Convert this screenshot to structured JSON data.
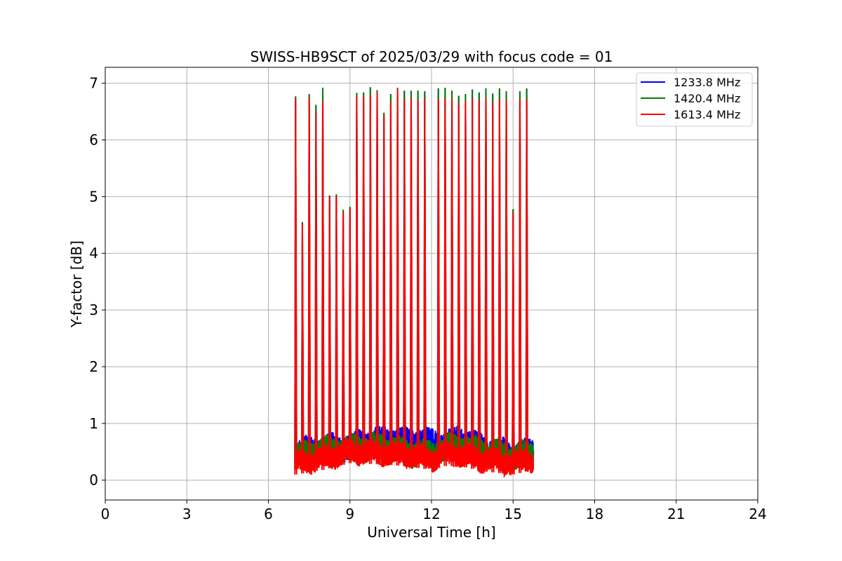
{
  "chart_data": {
    "type": "line",
    "title": "SWISS-HB9SCT of 2025/03/29 with focus code = 01",
    "xlabel": "Universal Time [h]",
    "ylabel": "Y-factor [dB]",
    "xlim": [
      0,
      24
    ],
    "ylim": [
      -0.35,
      7.28
    ],
    "xticks": [
      0,
      3,
      6,
      9,
      12,
      15,
      18,
      21,
      24
    ],
    "yticks": [
      0,
      1,
      2,
      3,
      4,
      5,
      6,
      7
    ],
    "grid": true,
    "legend_position": "top-right",
    "observation_window": [
      7.0,
      15.75
    ],
    "series": [
      {
        "name": "1233.8 MHz",
        "color": "#0000ff",
        "baseline": [
          [
            7.0,
            0.5
          ],
          [
            8.0,
            0.55
          ],
          [
            9.0,
            0.6
          ],
          [
            10.0,
            0.72
          ],
          [
            11.0,
            0.7
          ],
          [
            12.0,
            0.68
          ],
          [
            12.5,
            0.62
          ],
          [
            13.0,
            0.74
          ],
          [
            14.0,
            0.55
          ],
          [
            15.0,
            0.45
          ],
          [
            15.75,
            0.48
          ]
        ],
        "noise": 0.35,
        "peaks": [
          [
            7.0,
            6.75
          ],
          [
            7.25,
            4.55
          ],
          [
            7.5,
            6.8
          ],
          [
            7.75,
            6.6
          ],
          [
            8.0,
            6.9
          ],
          [
            8.25,
            5.02
          ],
          [
            8.5,
            5.03
          ],
          [
            8.75,
            4.77
          ],
          [
            9.0,
            4.81
          ],
          [
            9.25,
            6.82
          ],
          [
            9.5,
            6.83
          ],
          [
            9.75,
            6.92
          ],
          [
            10.0,
            6.87
          ],
          [
            10.25,
            6.47
          ],
          [
            10.5,
            6.8
          ],
          [
            10.75,
            6.91
          ],
          [
            11.0,
            6.86
          ],
          [
            11.25,
            6.86
          ],
          [
            11.5,
            6.86
          ],
          [
            11.75,
            6.85
          ],
          [
            12.25,
            6.9
          ],
          [
            12.5,
            6.91
          ],
          [
            12.75,
            6.86
          ],
          [
            13.0,
            6.77
          ],
          [
            13.25,
            6.8
          ],
          [
            13.5,
            6.88
          ],
          [
            13.75,
            6.83
          ],
          [
            14.0,
            6.9
          ],
          [
            14.25,
            6.81
          ],
          [
            14.5,
            6.9
          ],
          [
            14.75,
            6.85
          ],
          [
            15.0,
            4.77
          ],
          [
            15.25,
            6.85
          ],
          [
            15.5,
            6.9
          ]
        ]
      },
      {
        "name": "1420.4 MHz",
        "color": "#008000",
        "baseline": [
          [
            7.0,
            0.4
          ],
          [
            8.0,
            0.52
          ],
          [
            9.0,
            0.55
          ],
          [
            10.0,
            0.6
          ],
          [
            11.0,
            0.5
          ],
          [
            12.0,
            0.45
          ],
          [
            12.5,
            0.55
          ],
          [
            13.0,
            0.6
          ],
          [
            14.0,
            0.5
          ],
          [
            15.0,
            0.4
          ],
          [
            15.75,
            0.5
          ]
        ],
        "noise": 0.35,
        "peaks": [
          [
            7.0,
            6.77
          ],
          [
            7.25,
            4.55
          ],
          [
            7.5,
            6.81
          ],
          [
            7.75,
            6.62
          ],
          [
            8.0,
            6.92
          ],
          [
            8.25,
            5.02
          ],
          [
            8.5,
            5.04
          ],
          [
            8.75,
            4.77
          ],
          [
            9.0,
            4.82
          ],
          [
            9.25,
            6.83
          ],
          [
            9.5,
            6.84
          ],
          [
            9.75,
            6.93
          ],
          [
            10.0,
            6.88
          ],
          [
            10.25,
            6.48
          ],
          [
            10.5,
            6.81
          ],
          [
            10.75,
            6.92
          ],
          [
            11.0,
            6.87
          ],
          [
            11.25,
            6.87
          ],
          [
            11.5,
            6.87
          ],
          [
            11.75,
            6.86
          ],
          [
            12.25,
            6.91
          ],
          [
            12.5,
            6.92
          ],
          [
            12.75,
            6.87
          ],
          [
            13.0,
            6.78
          ],
          [
            13.25,
            6.81
          ],
          [
            13.5,
            6.89
          ],
          [
            13.75,
            6.84
          ],
          [
            14.0,
            6.91
          ],
          [
            14.25,
            6.82
          ],
          [
            14.5,
            6.91
          ],
          [
            14.75,
            6.86
          ],
          [
            15.0,
            4.78
          ],
          [
            15.25,
            6.86
          ],
          [
            15.5,
            6.91
          ]
        ]
      },
      {
        "name": "1613.4 MHz",
        "color": "#ff0000",
        "baseline": [
          [
            7.0,
            0.3
          ],
          [
            8.0,
            0.38
          ],
          [
            9.0,
            0.5
          ],
          [
            10.0,
            0.48
          ],
          [
            11.0,
            0.45
          ],
          [
            12.0,
            0.38
          ],
          [
            12.5,
            0.45
          ],
          [
            13.0,
            0.45
          ],
          [
            14.0,
            0.35
          ],
          [
            15.0,
            0.3
          ],
          [
            15.75,
            0.38
          ]
        ],
        "noise": 0.3,
        "peaks": [
          [
            7.0,
            6.73
          ],
          [
            7.25,
            4.53
          ],
          [
            7.5,
            6.73
          ],
          [
            7.75,
            6.48
          ],
          [
            8.0,
            6.68
          ],
          [
            8.25,
            5.0
          ],
          [
            8.5,
            5.01
          ],
          [
            8.75,
            4.74
          ],
          [
            9.0,
            4.79
          ],
          [
            9.25,
            6.77
          ],
          [
            9.5,
            6.77
          ],
          [
            9.75,
            6.79
          ],
          [
            10.0,
            6.84
          ],
          [
            10.25,
            6.42
          ],
          [
            10.5,
            6.67
          ],
          [
            10.75,
            6.9
          ],
          [
            11.0,
            6.72
          ],
          [
            11.25,
            6.74
          ],
          [
            11.5,
            6.71
          ],
          [
            11.75,
            6.72
          ],
          [
            12.25,
            6.72
          ],
          [
            12.5,
            6.73
          ],
          [
            12.75,
            6.73
          ],
          [
            13.0,
            6.65
          ],
          [
            13.25,
            6.68
          ],
          [
            13.5,
            6.74
          ],
          [
            13.75,
            6.7
          ],
          [
            14.0,
            6.73
          ],
          [
            14.25,
            6.66
          ],
          [
            14.5,
            6.72
          ],
          [
            14.75,
            6.71
          ],
          [
            15.0,
            4.73
          ],
          [
            15.25,
            6.72
          ],
          [
            15.5,
            6.72
          ]
        ]
      }
    ]
  }
}
